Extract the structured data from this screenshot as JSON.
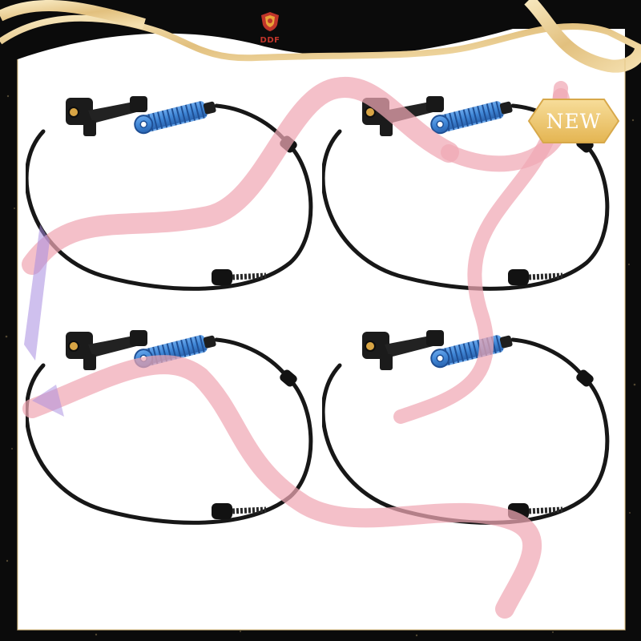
{
  "brand": {
    "logo_text": "DDF"
  },
  "badge": {
    "label": "NEW"
  },
  "product": {
    "item_count": 4
  },
  "colors": {
    "background": "#ffffff",
    "frame": "#0b0b0b",
    "gold_ribbon": "#e6c98a",
    "pink_ribbon": "#f0a7b4",
    "cable": "#171717",
    "connector_blue": "#3f86d6",
    "logo_red": "#c0342a"
  }
}
